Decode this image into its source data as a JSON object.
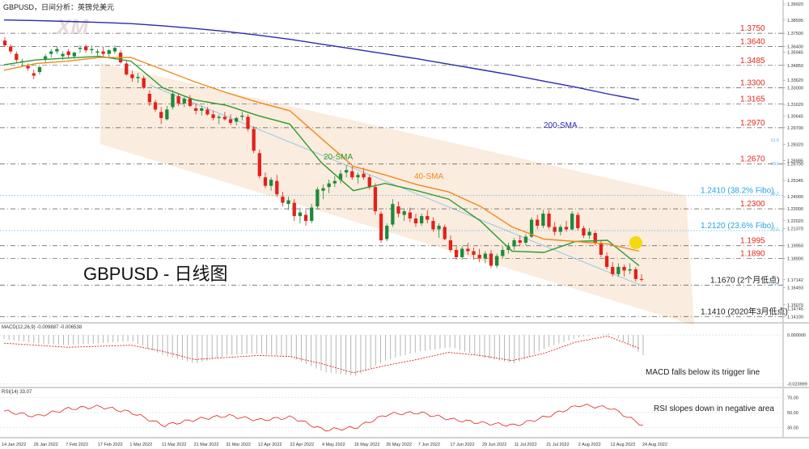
{
  "header": {
    "symbol_title": "GBPUSD，日间分析：英镑兑美元",
    "watermark": "XM"
  },
  "main_label": "GBPUSD - 日线图",
  "colors": {
    "bull": "#1f8a3a",
    "bear": "#e0221b",
    "sma20": "#2f9b2f",
    "sma40": "#f08a1e",
    "sma200": "#2a2ab0",
    "level_text": "#e02a1a",
    "fibo_text": "#29a3e0",
    "channel": "#f6dcc2",
    "ref_text": "#1c1c1c"
  },
  "chart_data": [
    {
      "type": "candlestick",
      "title": "GBPUSD，日间分析：英镑兑美元",
      "x_dates": [
        "14 Jan 2022",
        "26 Jan 2022",
        "7 Feb 2022",
        "17 Feb 2022",
        "1 Mar 2022",
        "11 Mar 2022",
        "21 Mar 2022",
        "31 Mar 2022",
        "12 Apr 2022",
        "22 Apr 2022",
        "4 May 2022",
        "16 May 2022",
        "26 May 2022",
        "7 Jun 2022",
        "17 Jun 2022",
        "29 Jun 2022",
        "11 Jul 2022",
        "21 Jul 2022",
        "2 Aug 2022",
        "12 Aug 2022",
        "24 Aug 2022"
      ],
      "ylim": [
        1.1365,
        1.4005
      ],
      "y_ticks": [
        1.3992,
        1.38595,
        1.375,
        1.364,
        1.35945,
        1.3485,
        1.3362,
        1.33,
        1.3162,
        1.30645,
        1.297,
        1.2832,
        1.26995,
        1.267,
        1.25345,
        1.24,
        1.23,
        1.2202,
        1.2137,
        1.1995,
        1.189,
        1.17142,
        1.16493,
        1.1507,
        1.14745,
        1.141
      ],
      "levels": [
        {
          "value": 1.375,
          "label": "1.3750",
          "kind": "resistance"
        },
        {
          "value": 1.364,
          "label": "1.3640",
          "kind": "resistance"
        },
        {
          "value": 1.3485,
          "label": "1.3485",
          "kind": "resistance"
        },
        {
          "value": 1.33,
          "label": "1.3300",
          "kind": "resistance"
        },
        {
          "value": 1.3165,
          "label": "1.3165",
          "kind": "resistance"
        },
        {
          "value": 1.297,
          "label": "1.2970",
          "kind": "resistance"
        },
        {
          "value": 1.267,
          "label": "1.2670",
          "kind": "resistance"
        },
        {
          "value": 1.241,
          "label": "1.2410 (38.2% Fibo)",
          "kind": "fibo"
        },
        {
          "value": 1.23,
          "label": "1.2300",
          "kind": "resistance"
        },
        {
          "value": 1.212,
          "label": "1.2120 (23.6% Fibo)",
          "kind": "fibo"
        },
        {
          "value": 1.1995,
          "label": "1.1995",
          "kind": "resistance"
        },
        {
          "value": 1.189,
          "label": "1.1890",
          "kind": "resistance"
        },
        {
          "value": 1.167,
          "label": "1.1670 (2个月低点)",
          "kind": "support"
        },
        {
          "value": 1.141,
          "label": "1.1410 (2020年3月低点)",
          "kind": "support"
        }
      ],
      "fibo_marks": [
        "61.8",
        "50.0",
        "38.2",
        "23.6",
        "0.0"
      ],
      "series": [
        {
          "name": "200-SMA",
          "values": [
            1.386,
            1.3855,
            1.3848,
            1.384,
            1.383,
            1.3812,
            1.379,
            1.3765,
            1.3735,
            1.37,
            1.366,
            1.362,
            1.358,
            1.354,
            1.3495,
            1.345,
            1.3405,
            1.3355,
            1.3305,
            1.325,
            1.32
          ]
        },
        {
          "name": "20-SMA",
          "values": [
            1.349,
            1.353,
            1.3545,
            1.356,
            1.352,
            1.33,
            1.32,
            1.3155,
            1.307,
            1.3,
            1.268,
            1.245,
            1.251,
            1.245,
            1.238,
            1.22,
            1.195,
            1.194,
            1.203,
            1.204,
            1.183
          ]
        },
        {
          "name": "40-SMA",
          "values": [
            1.3445,
            1.35,
            1.352,
            1.355,
            1.355,
            1.345,
            1.335,
            1.326,
            1.318,
            1.311,
            1.288,
            1.265,
            1.258,
            1.25,
            1.244,
            1.232,
            1.215,
            1.205,
            1.203,
            1.201,
            1.195
          ]
        }
      ],
      "candles": [
        [
          1.369,
          1.372,
          1.364,
          1.365
        ],
        [
          1.364,
          1.366,
          1.358,
          1.36
        ],
        [
          1.358,
          1.36,
          1.351,
          1.353
        ],
        [
          1.351,
          1.354,
          1.347,
          1.352
        ],
        [
          1.348,
          1.35,
          1.344,
          1.346
        ],
        [
          1.342,
          1.345,
          1.337,
          1.34
        ],
        [
          1.343,
          1.348,
          1.341,
          1.347
        ],
        [
          1.353,
          1.358,
          1.351,
          1.356
        ],
        [
          1.358,
          1.362,
          1.355,
          1.36
        ],
        [
          1.36,
          1.364,
          1.358,
          1.362
        ],
        [
          1.356,
          1.36,
          1.353,
          1.358
        ],
        [
          1.36,
          1.362,
          1.355,
          1.357
        ],
        [
          1.356,
          1.36,
          1.354,
          1.359
        ],
        [
          1.362,
          1.365,
          1.359,
          1.363
        ],
        [
          1.364,
          1.366,
          1.359,
          1.361
        ],
        [
          1.361,
          1.365,
          1.358,
          1.362
        ],
        [
          1.359,
          1.362,
          1.356,
          1.36
        ],
        [
          1.36,
          1.364,
          1.356,
          1.358
        ],
        [
          1.358,
          1.362,
          1.355,
          1.361
        ],
        [
          1.36,
          1.365,
          1.358,
          1.363
        ],
        [
          1.359,
          1.361,
          1.35,
          1.351
        ],
        [
          1.35,
          1.352,
          1.34,
          1.341
        ],
        [
          1.341,
          1.344,
          1.335,
          1.338
        ],
        [
          1.338,
          1.342,
          1.334,
          1.339
        ],
        [
          1.338,
          1.34,
          1.329,
          1.33
        ],
        [
          1.325,
          1.328,
          1.315,
          1.318
        ],
        [
          1.318,
          1.32,
          1.31,
          1.312
        ],
        [
          1.31,
          1.314,
          1.3,
          1.305
        ],
        [
          1.304,
          1.315,
          1.303,
          1.312
        ],
        [
          1.314,
          1.328,
          1.312,
          1.325
        ],
        [
          1.323,
          1.325,
          1.315,
          1.317
        ],
        [
          1.317,
          1.323,
          1.314,
          1.321
        ],
        [
          1.321,
          1.324,
          1.314,
          1.315
        ],
        [
          1.313,
          1.317,
          1.308,
          1.311
        ],
        [
          1.311,
          1.315,
          1.307,
          1.313
        ],
        [
          1.312,
          1.314,
          1.307,
          1.308
        ],
        [
          1.308,
          1.311,
          1.303,
          1.305
        ],
        [
          1.305,
          1.308,
          1.3,
          1.306
        ],
        [
          1.306,
          1.31,
          1.303,
          1.304
        ],
        [
          1.304,
          1.308,
          1.299,
          1.301
        ],
        [
          1.302,
          1.306,
          1.299,
          1.305
        ],
        [
          1.306,
          1.31,
          1.303,
          1.307
        ],
        [
          1.306,
          1.308,
          1.294,
          1.296
        ],
        [
          1.296,
          1.298,
          1.276,
          1.278
        ],
        [
          1.276,
          1.279,
          1.255,
          1.257
        ],
        [
          1.256,
          1.26,
          1.247,
          1.249
        ],
        [
          1.249,
          1.256,
          1.245,
          1.254
        ],
        [
          1.253,
          1.258,
          1.24,
          1.242
        ],
        [
          1.24,
          1.244,
          1.232,
          1.235
        ],
        [
          1.234,
          1.24,
          1.229,
          1.237
        ],
        [
          1.235,
          1.238,
          1.22,
          1.224
        ],
        [
          1.224,
          1.231,
          1.218,
          1.227
        ],
        [
          1.225,
          1.229,
          1.216,
          1.22
        ],
        [
          1.22,
          1.234,
          1.218,
          1.231
        ],
        [
          1.232,
          1.248,
          1.23,
          1.246
        ],
        [
          1.245,
          1.25,
          1.238,
          1.247
        ],
        [
          1.248,
          1.254,
          1.243,
          1.251
        ],
        [
          1.251,
          1.257,
          1.248,
          1.253
        ],
        [
          1.254,
          1.262,
          1.251,
          1.259
        ],
        [
          1.26,
          1.266,
          1.256,
          1.262
        ],
        [
          1.261,
          1.265,
          1.254,
          1.256
        ],
        [
          1.256,
          1.26,
          1.251,
          1.258
        ],
        [
          1.259,
          1.264,
          1.254,
          1.256
        ],
        [
          1.256,
          1.258,
          1.246,
          1.248
        ],
        [
          1.248,
          1.251,
          1.225,
          1.228
        ],
        [
          1.226,
          1.228,
          1.202,
          1.204
        ],
        [
          1.205,
          1.218,
          1.203,
          1.216
        ],
        [
          1.217,
          1.238,
          1.215,
          1.234
        ],
        [
          1.232,
          1.236,
          1.223,
          1.226
        ],
        [
          1.225,
          1.23,
          1.22,
          1.228
        ],
        [
          1.227,
          1.231,
          1.219,
          1.222
        ],
        [
          1.222,
          1.226,
          1.215,
          1.218
        ],
        [
          1.218,
          1.226,
          1.216,
          1.224
        ],
        [
          1.224,
          1.229,
          1.218,
          1.221
        ],
        [
          1.22,
          1.223,
          1.211,
          1.213
        ],
        [
          1.213,
          1.218,
          1.206,
          1.216
        ],
        [
          1.215,
          1.217,
          1.204,
          1.205
        ],
        [
          1.204,
          1.208,
          1.194,
          1.196
        ],
        [
          1.196,
          1.199,
          1.188,
          1.19
        ],
        [
          1.19,
          1.199,
          1.188,
          1.197
        ],
        [
          1.197,
          1.202,
          1.192,
          1.195
        ],
        [
          1.195,
          1.198,
          1.188,
          1.192
        ],
        [
          1.192,
          1.197,
          1.186,
          1.189
        ],
        [
          1.189,
          1.195,
          1.185,
          1.193
        ],
        [
          1.193,
          1.196,
          1.181,
          1.183
        ],
        [
          1.183,
          1.193,
          1.181,
          1.191
        ],
        [
          1.191,
          1.199,
          1.189,
          1.196
        ],
        [
          1.196,
          1.202,
          1.193,
          1.199
        ],
        [
          1.199,
          1.206,
          1.196,
          1.204
        ],
        [
          1.204,
          1.208,
          1.199,
          1.202
        ],
        [
          1.202,
          1.209,
          1.2,
          1.207
        ],
        [
          1.207,
          1.223,
          1.206,
          1.221
        ],
        [
          1.221,
          1.225,
          1.213,
          1.216
        ],
        [
          1.216,
          1.229,
          1.214,
          1.226
        ],
        [
          1.226,
          1.229,
          1.213,
          1.215
        ],
        [
          1.215,
          1.219,
          1.208,
          1.211
        ],
        [
          1.211,
          1.217,
          1.208,
          1.215
        ],
        [
          1.215,
          1.22,
          1.211,
          1.213
        ],
        [
          1.213,
          1.228,
          1.212,
          1.226
        ],
        [
          1.225,
          1.227,
          1.212,
          1.214
        ],
        [
          1.214,
          1.216,
          1.206,
          1.208
        ],
        [
          1.208,
          1.214,
          1.205,
          1.211
        ],
        [
          1.21,
          1.212,
          1.2,
          1.202
        ],
        [
          1.202,
          1.204,
          1.19,
          1.192
        ],
        [
          1.191,
          1.194,
          1.18,
          1.182
        ],
        [
          1.182,
          1.186,
          1.174,
          1.176
        ],
        [
          1.176,
          1.185,
          1.174,
          1.182
        ],
        [
          1.182,
          1.184,
          1.174,
          1.179
        ],
        [
          1.179,
          1.185,
          1.176,
          1.18
        ],
        [
          1.18,
          1.182,
          1.17,
          1.172
        ],
        [
          1.172,
          1.176,
          1.17,
          1.1714
        ]
      ]
    },
    {
      "type": "line",
      "title": "MACD(12,26,9) -0.009887 -0.006538",
      "name": "MACD",
      "y_ticks": [
        0.0,
        -0.023999
      ],
      "y_tick_labels": [
        "0.000000",
        "-0.023999"
      ],
      "annotation": "MACD falls below its trigger line",
      "signal": [
        -0.004,
        -0.005,
        -0.006,
        -0.0055,
        -0.005,
        -0.008,
        -0.012,
        -0.011,
        -0.01,
        -0.0105,
        -0.014,
        -0.0185,
        -0.015,
        -0.012,
        -0.0085,
        -0.01,
        -0.0125,
        -0.009,
        -0.0035,
        -0.0005,
        -0.0065
      ],
      "histogram": [
        -0.002,
        -0.004,
        -0.005,
        -0.004,
        -0.003,
        -0.01,
        -0.014,
        -0.01,
        -0.009,
        -0.011,
        -0.018,
        -0.02,
        -0.012,
        -0.008,
        -0.006,
        -0.011,
        -0.014,
        -0.006,
        -0.001,
        0.001,
        -0.0099
      ]
    },
    {
      "type": "line",
      "title": "RSI(14) 33.07",
      "name": "RSI",
      "y_ticks": [
        70,
        50,
        30
      ],
      "y_tick_labels": [
        "70.00",
        "50.00",
        "30.00"
      ],
      "annotation": "RSI slopes down in negative area",
      "values": [
        52,
        45,
        55,
        58,
        50,
        33,
        41,
        46,
        40,
        44,
        27,
        30,
        48,
        50,
        41,
        36,
        33,
        45,
        60,
        56,
        33
      ]
    }
  ]
}
